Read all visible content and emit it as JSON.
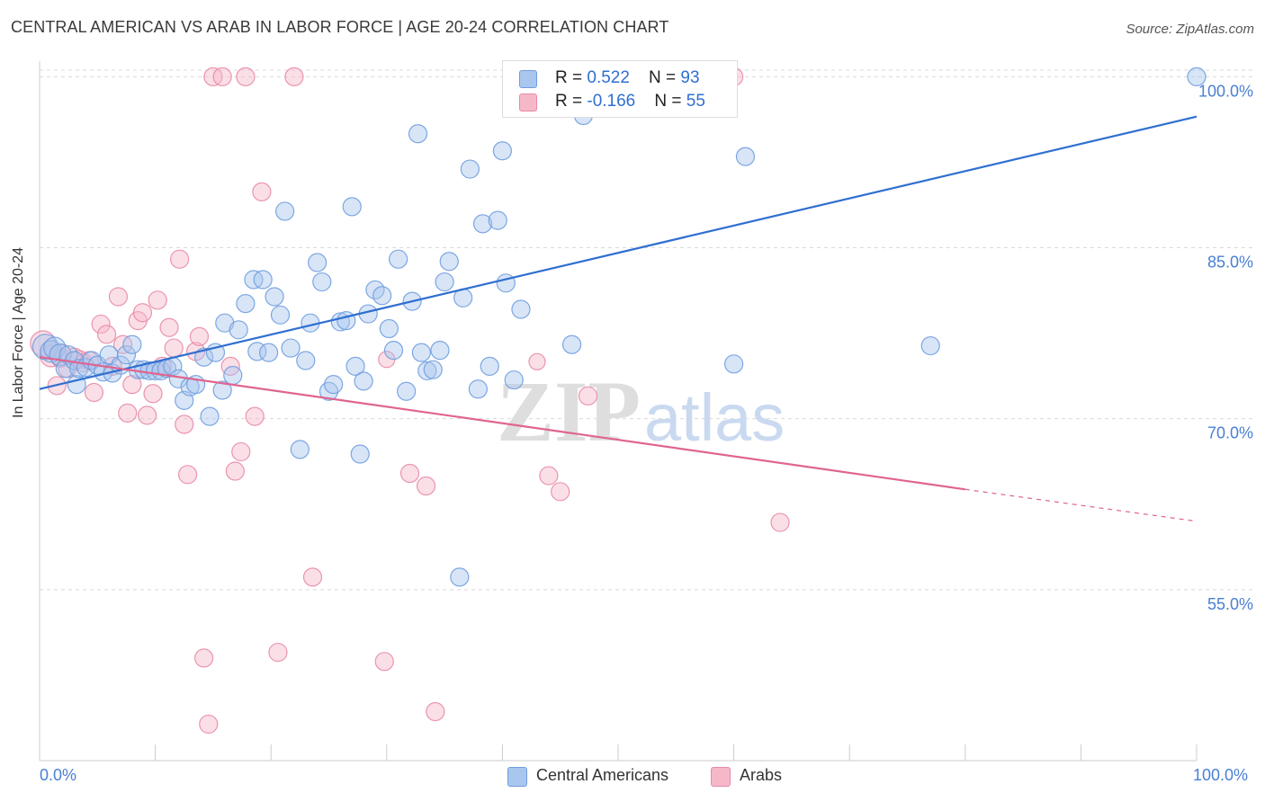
{
  "title": "CENTRAL AMERICAN VS ARAB IN LABOR FORCE | AGE 20-24 CORRELATION CHART",
  "source": "Source: ZipAtlas.com",
  "watermark": "ZIPatlas",
  "legend_top": {
    "rows": [
      {
        "r_label": "R = ",
        "r_value": "0.522",
        "n_label": "N = ",
        "n_value": "93",
        "color": "#a9c6ee"
      },
      {
        "r_label": "R = ",
        "r_value": "-0.166",
        "n_label": "N = ",
        "n_value": "55",
        "color": "#f6b8c9"
      }
    ]
  },
  "legend_bottom": [
    {
      "label": "Central Americans",
      "color": "#a9c6ee"
    },
    {
      "label": "Arabs",
      "color": "#f6b8c9"
    }
  ],
  "colors": {
    "blue_fill": "#a9c6ee",
    "blue_stroke": "#6f9ddf",
    "blue_line": "#2f6fd0",
    "pink_fill": "#f6b8c9",
    "pink_stroke": "#e889a6",
    "pink_line": "#e0648f",
    "tick_text": "#4a7fd4",
    "grid": "#d9d9d9"
  },
  "chart_data": {
    "type": "scatter",
    "title": "CENTRAL AMERICAN VS ARAB IN LABOR FORCE | AGE 20-24 CORRELATION CHART",
    "xlabel": "",
    "ylabel": "In Labor Force | Age 20-24",
    "xlim": [
      0,
      100
    ],
    "ylim": [
      40,
      102
    ],
    "x_tick_labels": [
      "0.0%",
      "100.0%"
    ],
    "y_ticks": [
      {
        "value": 55,
        "label": "55.0%"
      },
      {
        "value": 70,
        "label": "70.0%"
      },
      {
        "value": 85,
        "label": "85.0%"
      },
      {
        "value": 100,
        "label": "100.0%"
      }
    ],
    "grid": true,
    "legend_position": "bottom",
    "series": [
      {
        "name": "Central Americans",
        "r": 0.522,
        "n": 93,
        "trend": {
          "x0": 0,
          "y0": 72.6,
          "x1": 100,
          "y1": 96.5
        },
        "points": [
          [
            0.5,
            76.3,
            3
          ],
          [
            1,
            75.9,
            2
          ],
          [
            1.3,
            76.2,
            2
          ],
          [
            1.8,
            75.6,
            2
          ],
          [
            2.2,
            74.4,
            1
          ],
          [
            2.5,
            75.6,
            1
          ],
          [
            3,
            75.1,
            1
          ],
          [
            3.2,
            73.0,
            1
          ],
          [
            3.4,
            74.4,
            1
          ],
          [
            4,
            74.5,
            1
          ],
          [
            4.5,
            75.1,
            1
          ],
          [
            5,
            74.7,
            1
          ],
          [
            5.5,
            74.1,
            1
          ],
          [
            6,
            75.6,
            1
          ],
          [
            6.3,
            74.0,
            1
          ],
          [
            7,
            74.7,
            1
          ],
          [
            7.5,
            75.6,
            1
          ],
          [
            8,
            76.5,
            1
          ],
          [
            8.5,
            74.3,
            1
          ],
          [
            9,
            74.3,
            1
          ],
          [
            9.5,
            74.2,
            1
          ],
          [
            10,
            74.2,
            1
          ],
          [
            10.5,
            74.2,
            1
          ],
          [
            11,
            74.4,
            1
          ],
          [
            11.5,
            74.6,
            1
          ],
          [
            12,
            73.5,
            1
          ],
          [
            12.5,
            71.6,
            1
          ],
          [
            13,
            72.8,
            1
          ],
          [
            13.5,
            73.0,
            1
          ],
          [
            14.2,
            75.4,
            1
          ],
          [
            14.7,
            70.2,
            1
          ],
          [
            15.2,
            75.8,
            1
          ],
          [
            15.8,
            72.5,
            1
          ],
          [
            16,
            78.4,
            1
          ],
          [
            16.7,
            73.8,
            1
          ],
          [
            17.2,
            77.8,
            1
          ],
          [
            17.8,
            80.1,
            1
          ],
          [
            18.5,
            82.2,
            1
          ],
          [
            18.8,
            75.9,
            1
          ],
          [
            19.3,
            82.2,
            1
          ],
          [
            19.8,
            75.8,
            1
          ],
          [
            20.3,
            80.7,
            1
          ],
          [
            20.8,
            79.1,
            1
          ],
          [
            21.2,
            88.2,
            1
          ],
          [
            21.7,
            76.2,
            1
          ],
          [
            22.5,
            67.3,
            1
          ],
          [
            23,
            75.1,
            1
          ],
          [
            23.4,
            78.4,
            1
          ],
          [
            24,
            83.7,
            1
          ],
          [
            24.4,
            82.0,
            1
          ],
          [
            25,
            72.4,
            1
          ],
          [
            25.4,
            73.0,
            1
          ],
          [
            26,
            78.5,
            1
          ],
          [
            26.5,
            78.6,
            1
          ],
          [
            27,
            88.6,
            1
          ],
          [
            27.3,
            74.6,
            1
          ],
          [
            27.7,
            66.9,
            1
          ],
          [
            28,
            73.3,
            1
          ],
          [
            28.4,
            79.2,
            1
          ],
          [
            29,
            81.3,
            1
          ],
          [
            29.6,
            80.8,
            1
          ],
          [
            30.2,
            77.9,
            1
          ],
          [
            30.6,
            76.0,
            1
          ],
          [
            31,
            84.0,
            1
          ],
          [
            31.7,
            72.4,
            1
          ],
          [
            32.2,
            80.3,
            1
          ],
          [
            32.7,
            95.0,
            1
          ],
          [
            33,
            75.8,
            1
          ],
          [
            33.5,
            74.2,
            1
          ],
          [
            34,
            74.3,
            1
          ],
          [
            34.6,
            76.0,
            1
          ],
          [
            35,
            82.0,
            1
          ],
          [
            35.4,
            83.8,
            1
          ],
          [
            36.3,
            56.1,
            1
          ],
          [
            36.6,
            80.6,
            1
          ],
          [
            37.2,
            91.9,
            1
          ],
          [
            37.9,
            72.6,
            1
          ],
          [
            38.3,
            87.1,
            1
          ],
          [
            38.9,
            74.6,
            1
          ],
          [
            39.6,
            87.4,
            1
          ],
          [
            40,
            93.5,
            1
          ],
          [
            40.3,
            81.9,
            1
          ],
          [
            41,
            73.4,
            1
          ],
          [
            41.6,
            79.6,
            1
          ],
          [
            43,
            97.4,
            1
          ],
          [
            44,
            100,
            1
          ],
          [
            46,
            76.5,
            1
          ],
          [
            47,
            96.6,
            1
          ],
          [
            56,
            100,
            1
          ],
          [
            60,
            74.8,
            1
          ],
          [
            61,
            93.0,
            1
          ],
          [
            77,
            76.4,
            1
          ],
          [
            100,
            100,
            1
          ]
        ]
      },
      {
        "name": "Arabs",
        "r": -0.166,
        "n": 55,
        "trend": {
          "x0": 0,
          "y0": 75.4,
          "x1": 80,
          "y1": 63.8,
          "dash_to": {
            "x": 100,
            "y": 61.0
          }
        },
        "points": [
          [
            0.3,
            76.6,
            3
          ],
          [
            1,
            75.5,
            2
          ],
          [
            1.5,
            72.9,
            1
          ],
          [
            1.8,
            75.3,
            1
          ],
          [
            2.4,
            74.4,
            1
          ],
          [
            3,
            75.4,
            1
          ],
          [
            3.4,
            75.2,
            1
          ],
          [
            3.8,
            74.9,
            1
          ],
          [
            4.3,
            75.1,
            1
          ],
          [
            4.7,
            72.3,
            1
          ],
          [
            5.3,
            78.3,
            1
          ],
          [
            5.8,
            77.4,
            1
          ],
          [
            6.3,
            74.6,
            1
          ],
          [
            6.8,
            80.7,
            1
          ],
          [
            7.2,
            76.5,
            1
          ],
          [
            7.6,
            70.5,
            1
          ],
          [
            8,
            73.0,
            1
          ],
          [
            8.5,
            78.6,
            1
          ],
          [
            8.9,
            79.3,
            1
          ],
          [
            9.3,
            70.3,
            1
          ],
          [
            9.8,
            72.2,
            1
          ],
          [
            10.2,
            80.4,
            1
          ],
          [
            10.6,
            74.6,
            1
          ],
          [
            11.2,
            78.0,
            1
          ],
          [
            11.6,
            76.2,
            1
          ],
          [
            12.1,
            84.0,
            1
          ],
          [
            12.5,
            69.5,
            1
          ],
          [
            12.8,
            65.1,
            1
          ],
          [
            13.5,
            75.9,
            1
          ],
          [
            13.8,
            77.2,
            1
          ],
          [
            14.2,
            49.0,
            1
          ],
          [
            14.6,
            43.2,
            1
          ],
          [
            15,
            100,
            1
          ],
          [
            15.8,
            100,
            1
          ],
          [
            16.5,
            74.6,
            1
          ],
          [
            16.9,
            65.4,
            1
          ],
          [
            17.4,
            67.1,
            1
          ],
          [
            17.8,
            100,
            1
          ],
          [
            18.6,
            70.2,
            1
          ],
          [
            19.2,
            89.9,
            1
          ],
          [
            20.6,
            49.5,
            1
          ],
          [
            22,
            100,
            1
          ],
          [
            23.6,
            56.1,
            1
          ],
          [
            29.8,
            48.7,
            1
          ],
          [
            32,
            65.2,
            1
          ],
          [
            33.4,
            64.1,
            1
          ],
          [
            34.2,
            44.3,
            1
          ],
          [
            44,
            65.0,
            1
          ],
          [
            45,
            63.6,
            1
          ],
          [
            47.4,
            72.0,
            1
          ],
          [
            60,
            100,
            1
          ],
          [
            64,
            60.9,
            1
          ],
          [
            43,
            75.0,
            0
          ],
          [
            30,
            75.2,
            0
          ],
          [
            2,
            75.8,
            0
          ]
        ]
      }
    ]
  }
}
